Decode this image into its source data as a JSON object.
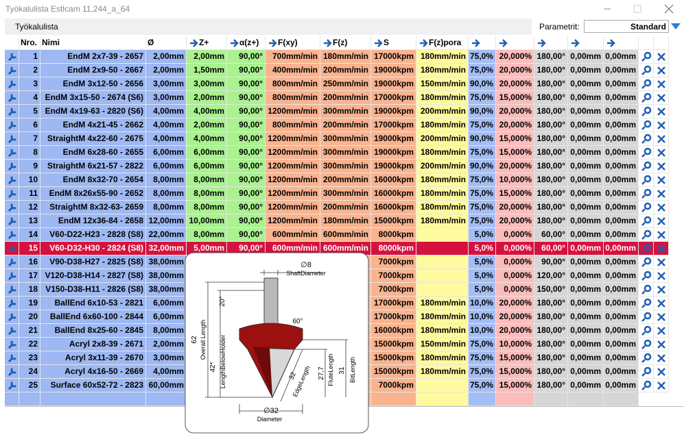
{
  "header": {
    "title": "Työkalulista Estlcam 11,244_a_64",
    "menu": "Työkalulista",
    "param_label": "Parametrit:",
    "param_value": "Standard"
  },
  "table": {
    "columns": [
      "Nro.",
      "Nimi",
      "Ø",
      "Z+",
      "α(z+)",
      "F(xy)",
      "F(z)",
      "S",
      "F(z)pora",
      null,
      null,
      null,
      null,
      null
    ],
    "selected": 15,
    "rows": [
      [
        1,
        "EndM 2x7-39 - 2657",
        "2,00mm",
        "2,00mm",
        "90,00°",
        "700mm/min",
        "180mm/min",
        "17000kpm",
        "180mm/min",
        "75,0%",
        "20,000%",
        "180,00°",
        "0,00mm",
        "0,00mm"
      ],
      [
        2,
        "EndM 2x9-50 - 2667",
        "2,00mm",
        "1,50mm",
        "90,00°",
        "400mm/min",
        "200mm/min",
        "19000kpm",
        "180mm/min",
        "75,0%",
        "20,000%",
        "180,00°",
        "0,00mm",
        "0,00mm"
      ],
      [
        3,
        "EndM 3x12-50 - 2656",
        "3,00mm",
        "3,00mm",
        "90,00°",
        "800mm/min",
        "250mm/min",
        "19000kpm",
        "150mm/min",
        "90,0%",
        "20,000%",
        "180,00°",
        "0,00mm",
        "0,00mm"
      ],
      [
        4,
        "EndM 3x15-50 - 2674 (S6)",
        "3,00mm",
        "2,00mm",
        "90,00°",
        "800mm/min",
        "200mm/min",
        "17000kpm",
        "180mm/min",
        "75,0%",
        "15,000%",
        "180,00°",
        "0,00mm",
        "0,00mm"
      ],
      [
        5,
        "EndM 4x19-63 - 2820 (S6)",
        "4,00mm",
        "4,00mm",
        "90,00°",
        "1200mm/min",
        "300mm/min",
        "19000kpm",
        "200mm/min",
        "90,0%",
        "20,000%",
        "180,00°",
        "0,00mm",
        "0,00mm"
      ],
      [
        6,
        "EndM 4x21-45 - 2662",
        "4,00mm",
        "2,00mm",
        "90,00°",
        "800mm/min",
        "200mm/min",
        "17000kpm",
        "180mm/min",
        "75,0%",
        "20,000%",
        "180,00°",
        "0,00mm",
        "0,00mm"
      ],
      [
        7,
        "StraightM 4x22-60 - 2675",
        "4,00mm",
        "4,00mm",
        "90,00°",
        "1200mm/min",
        "300mm/min",
        "19000kpm",
        "200mm/min",
        "90,0%",
        "15,000%",
        "180,00°",
        "0,00mm",
        "0,00mm"
      ],
      [
        8,
        "EndM 6x28-60 - 2655",
        "6,00mm",
        "6,00mm",
        "90,00°",
        "1200mm/min",
        "300mm/min",
        "19000kpm",
        "180mm/min",
        "75,0%",
        "15,000%",
        "180,00°",
        "0,00mm",
        "0,00mm"
      ],
      [
        9,
        "StraightM 6x21-57 - 2822",
        "6,00mm",
        "6,00mm",
        "90,00°",
        "1200mm/min",
        "300mm/min",
        "19000kpm",
        "200mm/min",
        "90,0%",
        "20,000%",
        "180,00°",
        "0,00mm",
        "0,00mm"
      ],
      [
        10,
        "EndM 8x32-70 - 2654",
        "8,00mm",
        "8,00mm",
        "90,00°",
        "1200mm/min",
        "200mm/min",
        "16000kpm",
        "180mm/min",
        "75,0%",
        "10,000%",
        "180,00°",
        "0,00mm",
        "0,00mm"
      ],
      [
        11,
        "EndM 8x26x55-90 - 2652",
        "8,00mm",
        "8,00mm",
        "90,00°",
        "1200mm/min",
        "300mm/min",
        "16000kpm",
        "180mm/min",
        "75,0%",
        "15,000%",
        "180,00°",
        "0,00mm",
        "0,00mm"
      ],
      [
        12,
        "StraightM 8x32-63- 2659",
        "8,00mm",
        "8,00mm",
        "90,00°",
        "1200mm/min",
        "200mm/min",
        "16000kpm",
        "180mm/min",
        "75,0%",
        "20,000%",
        "180,00°",
        "0,00mm",
        "0,00mm"
      ],
      [
        13,
        "EndM 12x36-84 - 2658",
        "12,00mm",
        "10,00mm",
        "90,00°",
        "1200mm/min",
        "180mm/min",
        "15000kpm",
        "180mm/min",
        "75,0%",
        "20,000%",
        "180,00°",
        "0,00mm",
        "0,00mm"
      ],
      [
        14,
        "V60-D22-H23 - 2828 (S8)",
        "22,00mm",
        "8,00mm",
        "90,00°",
        "600mm/min",
        "600mm/min",
        "8000kpm",
        null,
        "5,0%",
        "0,000%",
        "60,00°",
        "0,00mm",
        "0,00mm"
      ],
      [
        15,
        "V60-D32-H30 - 2824 (S8)",
        "32,00mm",
        "5,00mm",
        "90,00°",
        "600mm/min",
        "600mm/min",
        "8000kpm",
        null,
        "5,0%",
        "0,000%",
        "60,00°",
        "0,00mm",
        "0,00mm"
      ],
      [
        16,
        "V90-D38-H27 - 2825 (S8)",
        "38,00mm",
        null,
        null,
        null,
        null,
        "7000kpm",
        null,
        "5,0%",
        "0,000%",
        "90,00°",
        "0,00mm",
        "0,00mm"
      ],
      [
        17,
        "V120-D38-H14 - 2827 (S8)",
        "38,00mm",
        null,
        null,
        null,
        null,
        "7000kpm",
        null,
        "5,0%",
        "0,000%",
        "120,00°",
        "0,00mm",
        "0,00mm"
      ],
      [
        18,
        "V150-D38-H11 - 2826 (S8)",
        "38,00mm",
        null,
        null,
        null,
        null,
        "7000kpm",
        null,
        "5,0%",
        "0,000%",
        "150,00°",
        "0,00mm",
        "0,00mm"
      ],
      [
        19,
        "BallEnd 6x10-53 - 2821",
        "6,00mm",
        null,
        null,
        null,
        null,
        "17000kpm",
        "180mm/min",
        "10,0%",
        "20,000%",
        "180,00°",
        "0,00mm",
        "0,00mm"
      ],
      [
        20,
        "BallEnd 6x60-100 - 2844",
        "6,00mm",
        null,
        null,
        null,
        null,
        "17000kpm",
        "180mm/min",
        "10,0%",
        "20,000%",
        "180,00°",
        "0,00mm",
        "0,00mm"
      ],
      [
        21,
        "BallEnd 8x25-60 - 2845",
        "8,00mm",
        null,
        null,
        null,
        null,
        "16000kpm",
        "180mm/min",
        "10,0%",
        "20,000%",
        "180,00°",
        "0,00mm",
        "0,00mm"
      ],
      [
        22,
        "Acryl 2x8-39 - 2671",
        "2,00mm",
        null,
        null,
        null,
        null,
        "15000kpm",
        "150mm/min",
        "75,0%",
        "10,000%",
        "180,00°",
        "0,00mm",
        "0,00mm"
      ],
      [
        23,
        "Acryl 3x11-39 - 2670",
        "3,00mm",
        null,
        null,
        null,
        null,
        "15000kpm",
        "180mm/min",
        "75,0%",
        "15,000%",
        "180,00°",
        "0,00mm",
        "0,00mm"
      ],
      [
        24,
        "Acryl 4x16-50 - 2669",
        "4,00mm",
        null,
        null,
        null,
        null,
        "15000kpm",
        "180mm/min",
        "75,0%",
        "15,000%",
        "180,00°",
        "0,00mm",
        "0,00mm"
      ],
      [
        25,
        "Surface 60x52-72 - 2823",
        "60,00mm",
        null,
        null,
        null,
        null,
        "7000kpm",
        null,
        "75,0%",
        "15,000%",
        "180,00°",
        "0,00mm",
        "0,00mm"
      ]
    ]
  },
  "popup": {
    "shaft_d": "∅8",
    "shaft_label": "ShaftDiameter",
    "tip_angle": "20°",
    "angle": "60°",
    "overall": "62",
    "overall_label": "Overall Length",
    "below": "42*",
    "below_label": "LengthBelowHolder",
    "edge": "32",
    "edge_label": "EdgeLength",
    "flute": "27,7",
    "flute_label": "FluteLength",
    "bit": "31",
    "bit_label": "BitLength",
    "diameter": "∅32",
    "diameter_label": "Diameter"
  }
}
